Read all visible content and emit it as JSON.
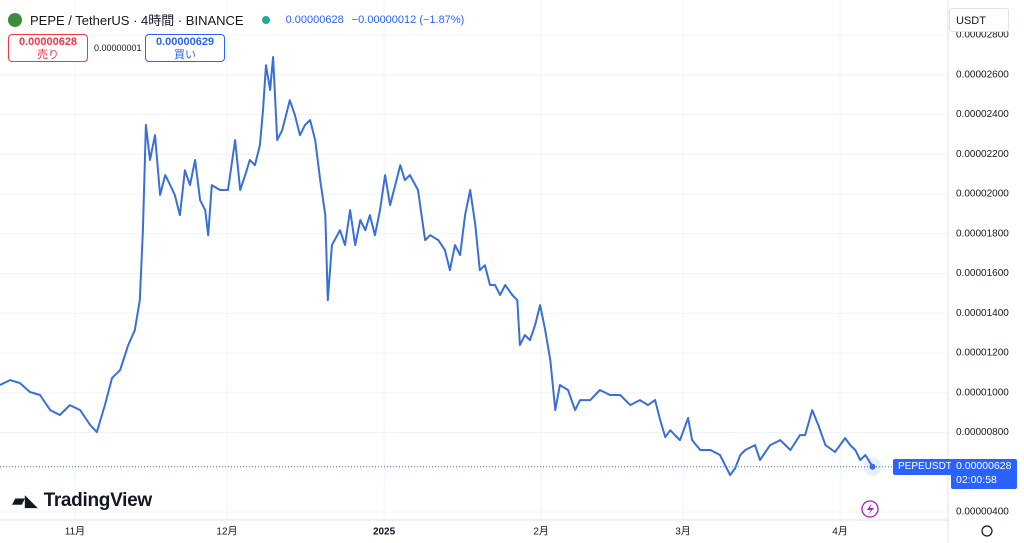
{
  "header": {
    "symbol": "PEPE / TetherUS · 4時間 · BINANCE",
    "price": "0.00000628",
    "change": "−0.00000012 (−1.87%)",
    "sell_price": "0.00000628",
    "sell_label": "売り",
    "spread": "0.00000001",
    "buy_price": "0.00000629",
    "buy_label": "買い",
    "currency": "USDT",
    "brand": "TradingView"
  },
  "last_price_label": {
    "symbol": "PEPEUSDT",
    "price": "0.00000628",
    "countdown": "02:00:58"
  },
  "chart_data": {
    "type": "line",
    "color": "#3a6fd8",
    "grid": true,
    "x": [
      16.2,
      18.2,
      20.1,
      22.1,
      24.1,
      26.1,
      28.0,
      30.0,
      32.0,
      34.0,
      35.3,
      36.9,
      38.3,
      39.9,
      41.5,
      42.8,
      43.8,
      44.4,
      45.0,
      45.8,
      46.8,
      47.8,
      48.8,
      49.8,
      50.7,
      51.7,
      52.7,
      53.7,
      54.7,
      55.7,
      56.7,
      57.3,
      58.0,
      59.6,
      61.2,
      62.6,
      63.6,
      64.6,
      65.5,
      66.5,
      67.5,
      68.1,
      68.7,
      69.5,
      70.1,
      70.9,
      71.9,
      73.4,
      74.4,
      75.4,
      76.4,
      77.4,
      78.4,
      79.4,
      80.4,
      80.9,
      81.7,
      83.3,
      84.3,
      85.3,
      86.3,
      87.3,
      88.3,
      89.2,
      90.2,
      91.2,
      92.2,
      93.2,
      94.2,
      95.2,
      96.1,
      97.1,
      98.7,
      100.1,
      101.1,
      102.7,
      104.0,
      105.0,
      106.0,
      107.0,
      108.0,
      109.0,
      110.0,
      110.9,
      111.9,
      112.9,
      113.9,
      114.9,
      115.9,
      117.3,
      118.3,
      118.8,
      119.8,
      120.8,
      121.8,
      122.8,
      123.8,
      124.8,
      125.8,
      126.7,
      128.3,
      129.7,
      130.7,
      132.7,
      134.6,
      136.6,
      138.6,
      140.6,
      142.5,
      144.1,
      145.5,
      146.5,
      147.5,
      148.5,
      149.4,
      150.4,
      152.0,
      152.8,
      154.4,
      156.4,
      158.3,
      160.3,
      161.3,
      162.3,
      163.3,
      165.2,
      166.2,
      168.2,
      170.2,
      172.2,
      174.1,
      175.1,
      176.5,
      177.7,
      179.1,
      181.0,
      183.0,
      184.0,
      185.0,
      186.0,
      187.0,
      188.4
    ],
    "values": [
      1.039e-05,
      1.064e-05,
      1.049e-05,
      1.004e-05,
      9.89e-06,
      9.13e-06,
      8.88e-06,
      9.38e-06,
      9.13e-06,
      8.38e-06,
      8.02e-06,
      9.38e-06,
      1.074e-05,
      1.114e-05,
      1.24e-05,
      1.315e-05,
      1.466e-05,
      1.818e-05,
      2.347e-05,
      2.171e-05,
      2.296e-05,
      1.995e-05,
      2.095e-05,
      2.045e-05,
      1.995e-05,
      1.894e-05,
      2.12e-05,
      2.045e-05,
      2.171e-05,
      1.969e-05,
      1.919e-05,
      1.793e-05,
      2.045e-05,
      2.02e-05,
      2.02e-05,
      2.271e-05,
      2.02e-05,
      2.095e-05,
      2.171e-05,
      2.145e-05,
      2.246e-05,
      2.422e-05,
      2.648e-05,
      2.523e-05,
      2.689e-05,
      2.271e-05,
      2.321e-05,
      2.472e-05,
      2.397e-05,
      2.296e-05,
      2.347e-05,
      2.372e-05,
      2.271e-05,
      2.07e-05,
      1.894e-05,
      1.466e-05,
      1.743e-05,
      1.818e-05,
      1.743e-05,
      1.919e-05,
      1.743e-05,
      1.869e-05,
      1.818e-05,
      1.894e-05,
      1.793e-05,
      1.919e-05,
      2.095e-05,
      1.944e-05,
      2.045e-05,
      2.145e-05,
      2.07e-05,
      2.095e-05,
      2.02e-05,
      1.768e-05,
      1.793e-05,
      1.768e-05,
      1.718e-05,
      1.617e-05,
      1.743e-05,
      1.693e-05,
      1.894e-05,
      2.02e-05,
      1.844e-05,
      1.617e-05,
      1.642e-05,
      1.542e-05,
      1.542e-05,
      1.492e-05,
      1.542e-05,
      1.492e-05,
      1.466e-05,
      1.24e-05,
      1.29e-05,
      1.265e-05,
      1.341e-05,
      1.441e-05,
      1.315e-05,
      1.165e-05,
      9.13e-06,
      1.039e-05,
      1.014e-05,
      9.13e-06,
      9.63e-06,
      9.63e-06,
      1.014e-05,
      9.89e-06,
      9.89e-06,
      9.38e-06,
      9.63e-06,
      9.38e-06,
      9.63e-06,
      8.63e-06,
      7.77e-06,
      8.12e-06,
      7.87e-06,
      7.62e-06,
      8.73e-06,
      7.62e-06,
      7.12e-06,
      7.12e-06,
      6.87e-06,
      5.86e-06,
      6.21e-06,
      6.87e-06,
      7.12e-06,
      7.37e-06,
      6.62e-06,
      7.37e-06,
      7.62e-06,
      7.12e-06,
      7.87e-06,
      7.87e-06,
      9.13e-06,
      8.38e-06,
      7.37e-06,
      7.02e-06,
      7.72e-06,
      7.37e-06,
      7.12e-06,
      6.62e-06,
      6.87e-06,
      6.28e-06
    ],
    "xlim": [
      16.2,
      203.3
    ],
    "xticks": [
      {
        "value": 31,
        "label": "11月"
      },
      {
        "value": 61,
        "label": "12月"
      },
      {
        "value": 92,
        "label": "2025"
      },
      {
        "value": 123,
        "label": "2月"
      },
      {
        "value": 151,
        "label": "3月"
      },
      {
        "value": 182,
        "label": "4月"
      }
    ],
    "ylim": [
      3.6e-06,
      2.976e-05
    ],
    "yticks": [
      {
        "value": 4e-06,
        "label": "0.00000400"
      },
      {
        "value": 8e-06,
        "label": "0.00000800"
      },
      {
        "value": 1e-05,
        "label": "0.00001000"
      },
      {
        "value": 1.2e-05,
        "label": "0.00001200"
      },
      {
        "value": 1.4e-05,
        "label": "0.00001400"
      },
      {
        "value": 1.6e-05,
        "label": "0.00001600"
      },
      {
        "value": 1.8e-05,
        "label": "0.00001800"
      },
      {
        "value": 2e-05,
        "label": "0.00002000"
      },
      {
        "value": 2.2e-05,
        "label": "0.00002200"
      },
      {
        "value": 2.4e-05,
        "label": "0.00002400"
      },
      {
        "value": 2.6e-05,
        "label": "0.00002600"
      },
      {
        "value": 2.8e-05,
        "label": "0.00002800"
      }
    ]
  }
}
